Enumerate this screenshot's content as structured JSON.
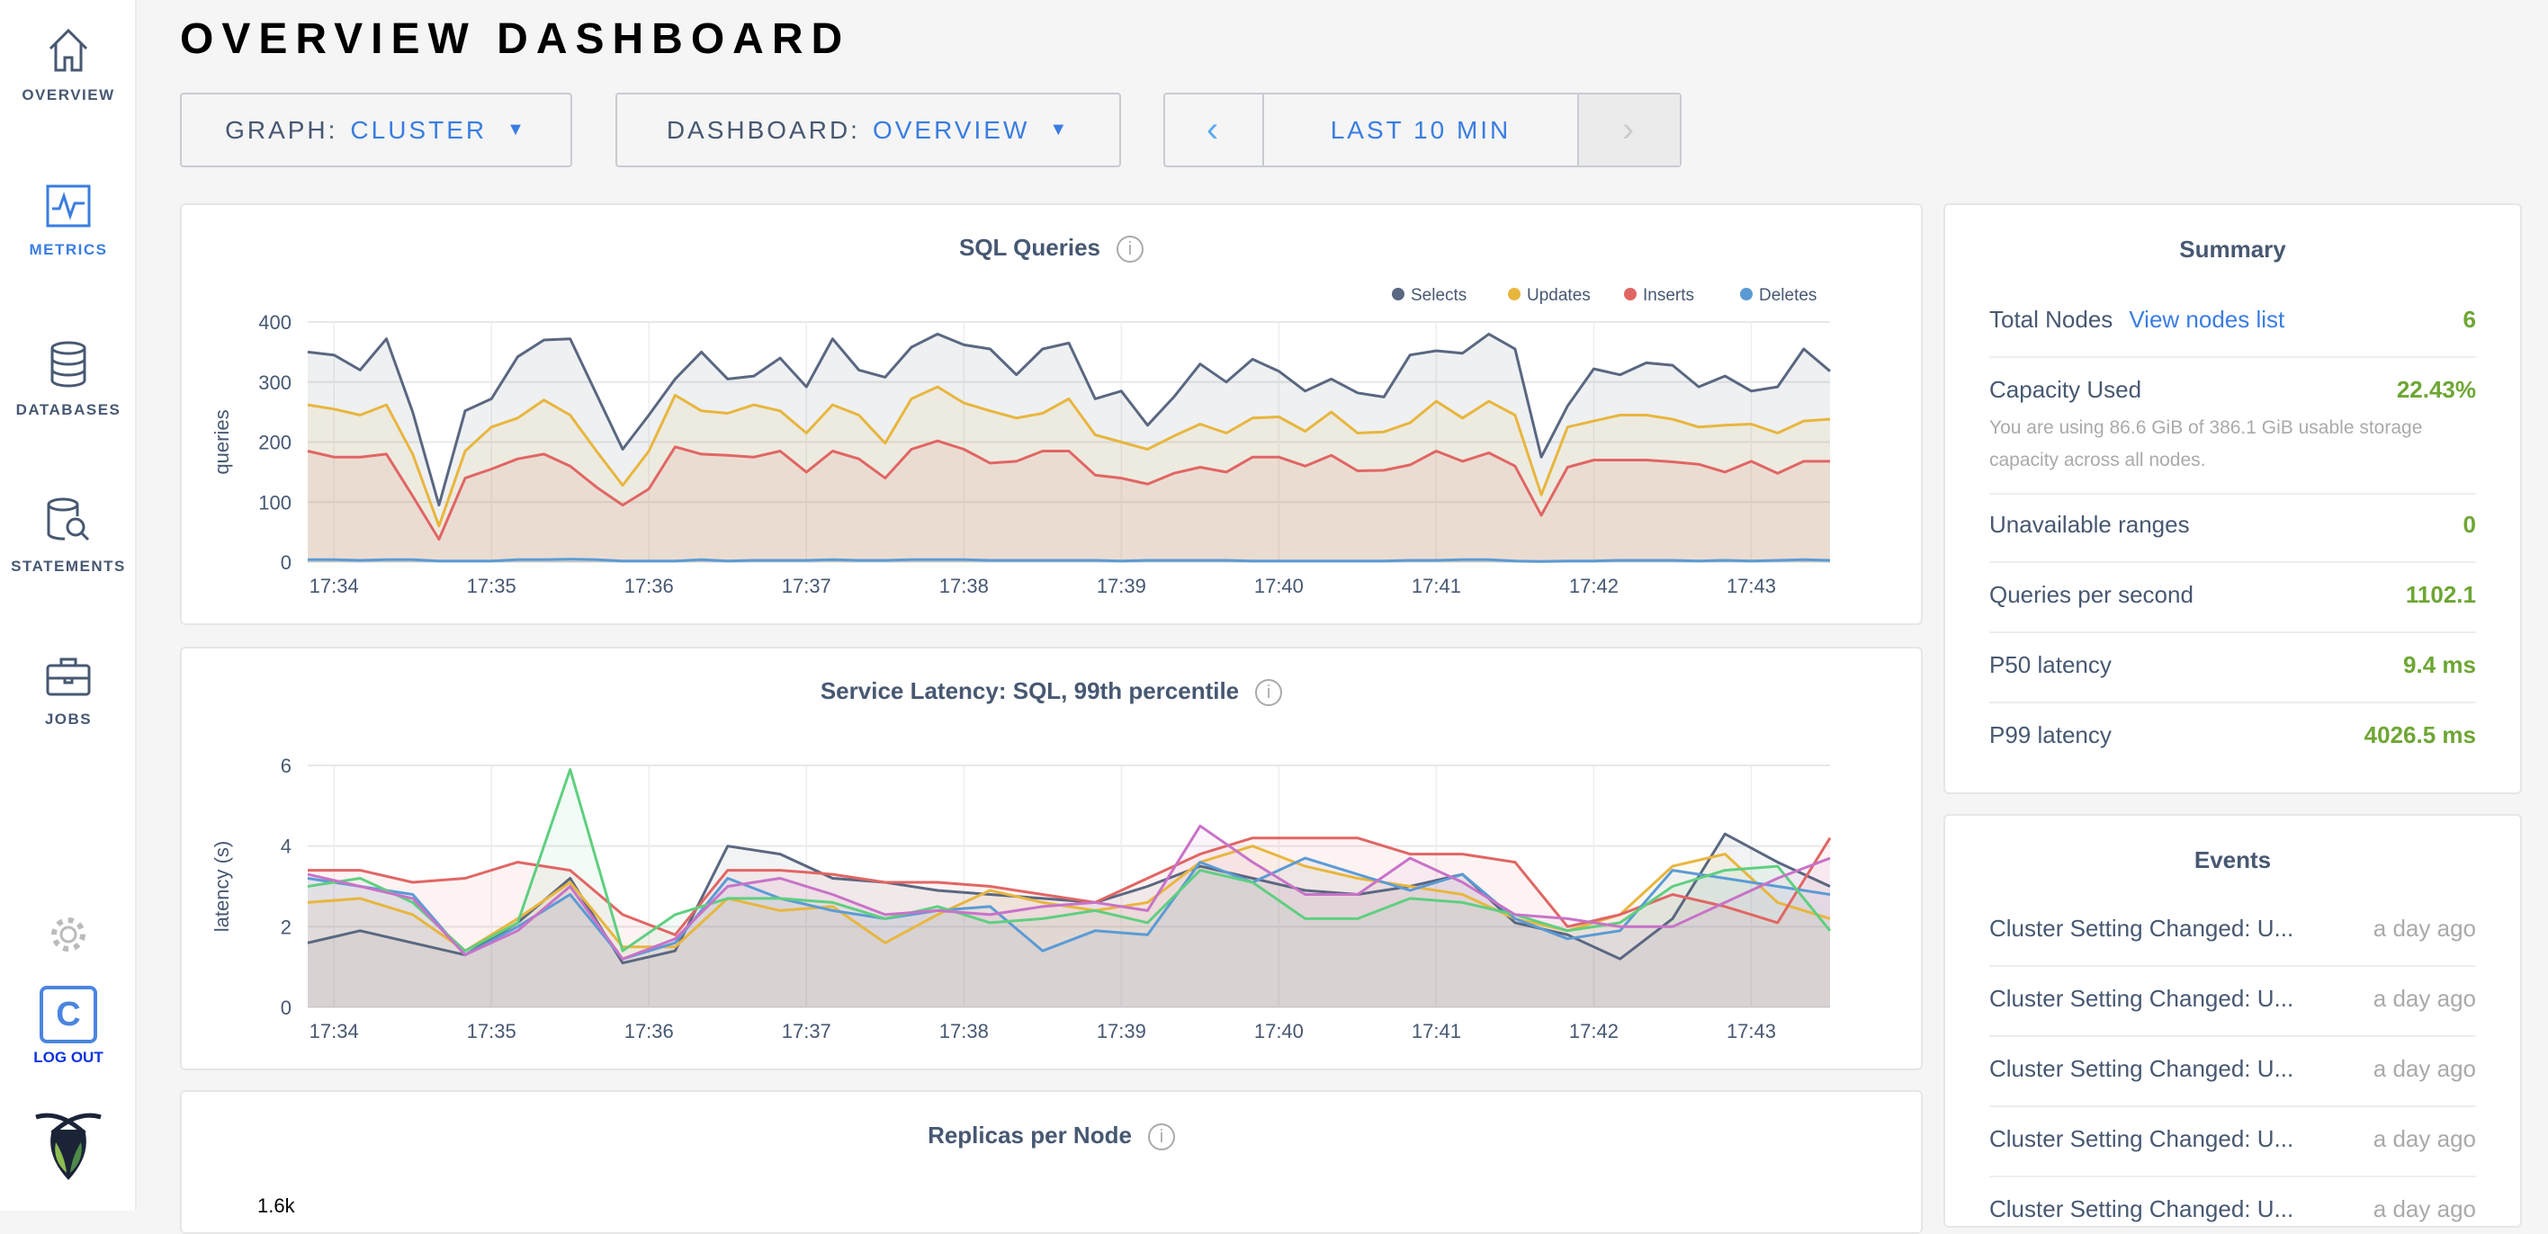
{
  "sidebar": {
    "items": [
      {
        "label": "OVERVIEW",
        "icon": "home-icon"
      },
      {
        "label": "METRICS",
        "icon": "metrics-icon",
        "active": true
      },
      {
        "label": "DATABASES",
        "icon": "database-icon"
      },
      {
        "label": "STATEMENTS",
        "icon": "statements-icon"
      },
      {
        "label": "JOBS",
        "icon": "briefcase-icon"
      }
    ],
    "settings_icon": "gear-icon",
    "user_initial": "C",
    "logout": "LOG OUT",
    "logo": "cockroach-logo"
  },
  "header": {
    "title": "OVERVIEW DASHBOARD"
  },
  "controls": {
    "graph_label": "GRAPH:",
    "graph_value": "CLUSTER",
    "dashboard_label": "DASHBOARD:",
    "dashboard_value": "OVERVIEW",
    "time_range": "LAST 10 MIN",
    "prev": "‹",
    "next": "›"
  },
  "colors": {
    "accent": "#3a7de1",
    "value_green": "#6ea634",
    "text": "#475872"
  },
  "summary": {
    "title": "Summary",
    "total_nodes_label": "Total Nodes",
    "view_nodes_link": "View nodes list",
    "total_nodes": "6",
    "capacity_label": "Capacity Used",
    "capacity_value": "22.43%",
    "capacity_note": "You are using 86.6 GiB of 386.1 GiB usable storage capacity across all nodes.",
    "unavailable_label": "Unavailable ranges",
    "unavailable_value": "0",
    "qps_label": "Queries per second",
    "qps_value": "1102.1",
    "p50_label": "P50 latency",
    "p50_value": "9.4 ms",
    "p99_label": "P99 latency",
    "p99_value": "4026.5 ms"
  },
  "events": {
    "title": "Events",
    "items": [
      {
        "text": "Cluster Setting Changed: U...",
        "time": "a day ago"
      },
      {
        "text": "Cluster Setting Changed: U...",
        "time": "a day ago"
      },
      {
        "text": "Cluster Setting Changed: U...",
        "time": "a day ago"
      },
      {
        "text": "Cluster Setting Changed: U...",
        "time": "a day ago"
      },
      {
        "text": "Cluster Setting Changed: U...",
        "time": "a day ago"
      }
    ]
  },
  "chart_data": [
    {
      "type": "area",
      "title": "SQL Queries",
      "ylabel": "queries",
      "ylim": [
        0,
        400
      ],
      "yticks": [
        "0",
        "100",
        "200",
        "300",
        "400"
      ],
      "xticks": [
        "17:34",
        "17:35",
        "17:36",
        "17:37",
        "17:38",
        "17:39",
        "17:40",
        "17:41",
        "17:42",
        "17:43"
      ],
      "x_first": "17:33:50",
      "x_interval_s": 10,
      "grid": true,
      "legend": "top-right",
      "series": [
        {
          "name": "Selects",
          "color": "#5a6781",
          "values": [
            350,
            345,
            320,
            372,
            250,
            95,
            252,
            272,
            342,
            370,
            372,
            280,
            188,
            245,
            305,
            350,
            305,
            310,
            340,
            292,
            372,
            320,
            308,
            358,
            380,
            362,
            355,
            312,
            355,
            365,
            272,
            285,
            228,
            275,
            330,
            300,
            338,
            318,
            285,
            305,
            282,
            275,
            345,
            352,
            348,
            380,
            355,
            175,
            260,
            322,
            312,
            332,
            328,
            292,
            310,
            285,
            292,
            355,
            318
          ]
        },
        {
          "name": "Updates",
          "color": "#e8b63e",
          "values": [
            262,
            255,
            245,
            262,
            180,
            60,
            185,
            225,
            240,
            270,
            245,
            185,
            128,
            185,
            278,
            252,
            248,
            262,
            252,
            215,
            262,
            245,
            198,
            272,
            292,
            265,
            252,
            240,
            248,
            272,
            212,
            200,
            188,
            210,
            230,
            215,
            240,
            242,
            218,
            250,
            215,
            217,
            232,
            268,
            240,
            268,
            245,
            112,
            225,
            235,
            245,
            245,
            238,
            225,
            228,
            230,
            215,
            235,
            238
          ]
        },
        {
          "name": "Inserts",
          "color": "#e06664",
          "values": [
            185,
            175,
            175,
            180,
            110,
            38,
            140,
            155,
            172,
            180,
            160,
            125,
            95,
            122,
            192,
            180,
            178,
            175,
            185,
            150,
            185,
            172,
            140,
            188,
            202,
            188,
            165,
            168,
            185,
            185,
            145,
            140,
            130,
            148,
            158,
            150,
            175,
            175,
            160,
            178,
            152,
            153,
            162,
            185,
            168,
            182,
            160,
            78,
            158,
            170,
            170,
            170,
            167,
            163,
            150,
            168,
            148,
            168,
            168
          ]
        },
        {
          "name": "Deletes",
          "color": "#5b9bd5",
          "values": [
            4,
            4,
            3,
            4,
            4,
            2,
            2,
            2,
            4,
            4,
            5,
            4,
            2,
            2,
            2,
            4,
            2,
            3,
            3,
            3,
            4,
            3,
            3,
            4,
            4,
            4,
            3,
            3,
            3,
            3,
            3,
            2,
            3,
            3,
            3,
            3,
            2,
            2,
            2,
            2,
            2,
            2,
            3,
            3,
            4,
            4,
            2,
            1,
            2,
            2,
            3,
            3,
            3,
            2,
            3,
            2,
            3,
            4,
            3
          ]
        }
      ]
    },
    {
      "type": "area",
      "title": "Service Latency: SQL, 99th percentile",
      "ylabel": "latency (s)",
      "ylim": [
        0,
        6
      ],
      "yticks": [
        "0",
        "2",
        "4",
        "6"
      ],
      "xticks": [
        "17:34",
        "17:35",
        "17:36",
        "17:37",
        "17:38",
        "17:39",
        "17:40",
        "17:41",
        "17:42",
        "17:43"
      ],
      "x_first": "17:33:50",
      "x_interval_s": 20,
      "grid": true,
      "series": [
        {
          "color": "#5a6781",
          "values": [
            1.6,
            1.9,
            1.6,
            1.3,
            2.1,
            3.2,
            1.1,
            1.4,
            4.0,
            3.8,
            3.2,
            3.1,
            2.9,
            2.8,
            2.7,
            2.6,
            3.0,
            3.5,
            3.2,
            2.9,
            2.8,
            3.0,
            3.3,
            2.1,
            1.8,
            1.2,
            2.2,
            4.3,
            3.6,
            3.0
          ]
        },
        {
          "color": "#e8b63e",
          "values": [
            2.6,
            2.7,
            2.3,
            1.4,
            2.2,
            3.1,
            1.5,
            1.5,
            2.7,
            2.4,
            2.5,
            1.6,
            2.3,
            2.9,
            2.6,
            2.4,
            2.6,
            3.6,
            4.0,
            3.5,
            3.2,
            3.0,
            2.8,
            2.2,
            1.9,
            2.3,
            3.5,
            3.8,
            2.6,
            2.2
          ]
        },
        {
          "color": "#e06664",
          "values": [
            3.4,
            3.4,
            3.1,
            3.2,
            3.6,
            3.4,
            2.3,
            1.8,
            3.4,
            3.4,
            3.3,
            3.1,
            3.1,
            3.0,
            2.8,
            2.6,
            3.2,
            3.8,
            4.2,
            4.2,
            4.2,
            3.8,
            3.8,
            3.6,
            2.0,
            2.3,
            2.8,
            2.5,
            2.1,
            4.2
          ]
        },
        {
          "color": "#5b9bd5",
          "values": [
            3.2,
            3.0,
            2.8,
            1.3,
            2.0,
            2.8,
            1.2,
            1.6,
            3.2,
            2.7,
            2.4,
            2.2,
            2.4,
            2.5,
            1.4,
            1.9,
            1.8,
            3.6,
            3.1,
            3.7,
            3.3,
            2.9,
            3.3,
            2.2,
            1.7,
            1.9,
            3.4,
            3.2,
            3.0,
            2.8
          ]
        },
        {
          "color": "#5fcf80",
          "values": [
            3.0,
            3.2,
            2.6,
            1.4,
            2.1,
            5.9,
            1.4,
            2.3,
            2.7,
            2.7,
            2.6,
            2.2,
            2.5,
            2.1,
            2.2,
            2.4,
            2.1,
            3.4,
            3.1,
            2.2,
            2.2,
            2.7,
            2.6,
            2.3,
            1.9,
            2.1,
            3.0,
            3.4,
            3.5,
            1.9
          ]
        },
        {
          "color": "#c873c8",
          "values": [
            3.3,
            3.0,
            2.7,
            1.3,
            1.9,
            3.0,
            1.2,
            1.7,
            3.0,
            3.2,
            2.8,
            2.3,
            2.4,
            2.3,
            2.5,
            2.6,
            2.4,
            4.5,
            3.6,
            2.8,
            2.8,
            3.7,
            3.1,
            2.3,
            2.2,
            2.0,
            2.0,
            2.6,
            3.2,
            3.7
          ]
        }
      ]
    },
    {
      "type": "line",
      "title": "Replicas per Node",
      "yticks": [
        "1.6k"
      ]
    }
  ]
}
